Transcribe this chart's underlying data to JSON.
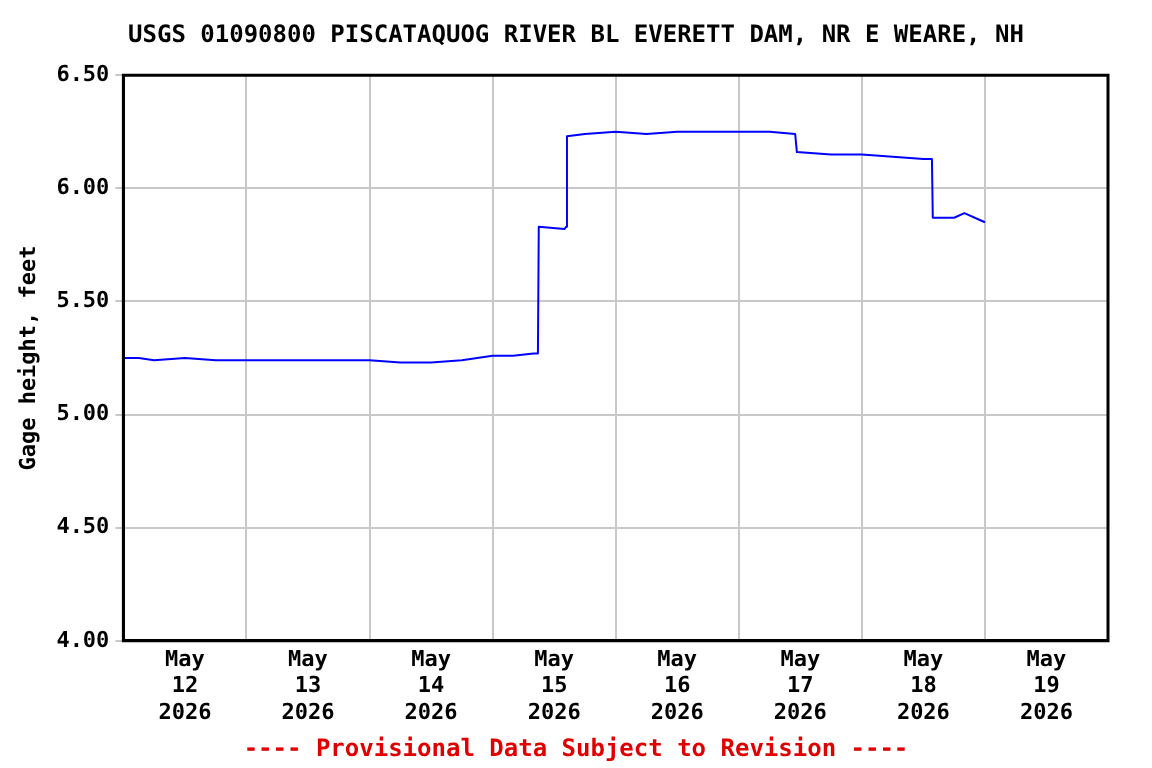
{
  "chart_data": {
    "type": "line",
    "title": "USGS 01090800 PISCATAQUOG RIVER BL EVERETT DAM, NR E WEARE, NH",
    "ylabel": "Gage height, feet",
    "annotations": [
      "---- Provisional Data Subject to Revision ----"
    ],
    "series": [
      {
        "color": "#0000ff",
        "x": [
          "2026-05-12T00:00",
          "2026-05-12T03:00",
          "2026-05-12T06:00",
          "2026-05-12T12:00",
          "2026-05-12T18:00",
          "2026-05-13T00:00",
          "2026-05-13T06:00",
          "2026-05-13T12:00",
          "2026-05-13T18:00",
          "2026-05-14T00:00",
          "2026-05-14T06:00",
          "2026-05-14T12:00",
          "2026-05-14T18:00",
          "2026-05-15T00:00",
          "2026-05-15T04:00",
          "2026-05-15T08:00",
          "2026-05-15T08:50",
          "2026-05-15T09:00",
          "2026-05-15T14:00",
          "2026-05-15T14:20",
          "2026-05-15T14:30",
          "2026-05-15T18:00",
          "2026-05-16T00:00",
          "2026-05-16T06:00",
          "2026-05-16T12:00",
          "2026-05-16T18:00",
          "2026-05-17T00:00",
          "2026-05-17T06:00",
          "2026-05-17T11:00",
          "2026-05-17T11:20",
          "2026-05-17T18:00",
          "2026-05-18T00:00",
          "2026-05-18T06:00",
          "2026-05-18T12:00",
          "2026-05-18T13:40",
          "2026-05-18T13:50",
          "2026-05-18T18:00",
          "2026-05-18T20:00",
          "2026-05-18T23:00",
          "2026-05-19T00:00"
        ],
        "values": [
          5.25,
          5.25,
          5.24,
          5.25,
          5.24,
          5.24,
          5.24,
          5.24,
          5.24,
          5.24,
          5.23,
          5.23,
          5.24,
          5.26,
          5.26,
          5.27,
          5.27,
          5.83,
          5.82,
          5.83,
          6.23,
          6.24,
          6.25,
          6.24,
          6.25,
          6.25,
          6.25,
          6.25,
          6.24,
          6.16,
          6.15,
          6.15,
          6.14,
          6.13,
          6.13,
          5.87,
          5.87,
          5.89,
          5.86,
          5.85
        ]
      }
    ],
    "xlim": [
      "2026-05-12",
      "2026-05-20"
    ],
    "xticks": [
      {
        "value": "2026-05-12T12:00",
        "label": "May\n12\n2026"
      },
      {
        "value": "2026-05-13",
        "label": null
      },
      {
        "value": "2026-05-13T12:00",
        "label": "May\n13\n2026"
      },
      {
        "value": "2026-05-14",
        "label": null
      },
      {
        "value": "2026-05-14T12:00",
        "label": "May\n14\n2026"
      },
      {
        "value": "2026-05-15",
        "label": null
      },
      {
        "value": "2026-05-15T12:00",
        "label": "May\n15\n2026"
      },
      {
        "value": "2026-05-16",
        "label": null
      },
      {
        "value": "2026-05-16T12:00",
        "label": "May\n16\n2026"
      },
      {
        "value": "2026-05-17",
        "label": null
      },
      {
        "value": "2026-05-17T12:00",
        "label": "May\n17\n2026"
      },
      {
        "value": "2026-05-18",
        "label": null
      },
      {
        "value": "2026-05-18T12:00",
        "label": "May\n18\n2026"
      },
      {
        "value": "2026-05-19",
        "label": null
      },
      {
        "value": "2026-05-19T12:00",
        "label": "May\n19\n2026"
      }
    ],
    "ylim": [
      4,
      6.5
    ],
    "yticks": [
      {
        "value": 4,
        "label": "4.00"
      },
      {
        "value": 4.5,
        "label": "4.50"
      },
      {
        "value": 5,
        "label": "5.00"
      },
      {
        "value": 5.5,
        "label": "5.50"
      },
      {
        "value": 6,
        "label": "6.00"
      },
      {
        "value": 6.5,
        "label": "6.50"
      }
    ],
    "grid": true,
    "legend": false,
    "marker": "none",
    "line_style": "solid"
  }
}
